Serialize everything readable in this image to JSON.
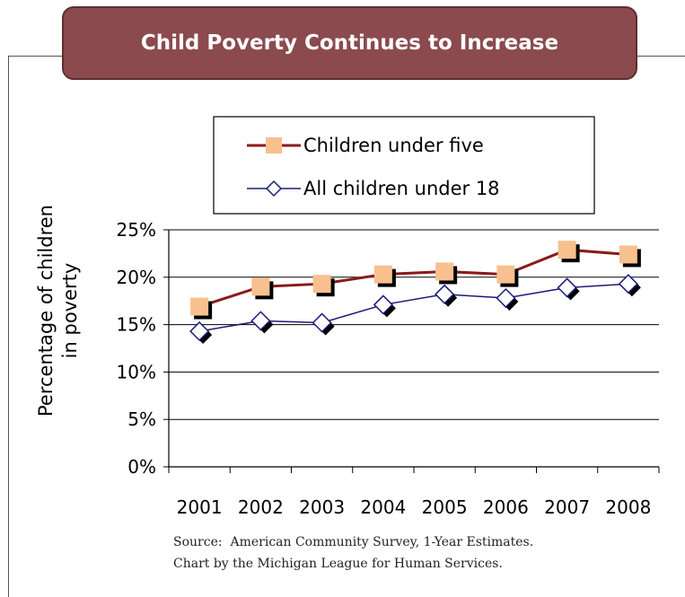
{
  "title": "Child Poverty Continues to Increase",
  "source_line1": "Source:  American Community Survey, 1-Year Estimates.",
  "source_line2": "Chart by the Michigan League for Human Services.",
  "chart_data": {
    "type": "line",
    "title": "",
    "xlabel": "",
    "ylabel": "Percentage of children in poverty",
    "ylabel_lines": [
      "Percentage of children",
      "in poverty"
    ],
    "categories": [
      "2001",
      "2002",
      "2003",
      "2004",
      "2005",
      "2006",
      "2007",
      "2008"
    ],
    "ylim": [
      0,
      25
    ],
    "yticks": [
      0,
      5,
      10,
      15,
      20,
      25
    ],
    "ytick_labels": [
      "0%",
      "5%",
      "10%",
      "15%",
      "20%",
      "25%"
    ],
    "grid": true,
    "legend_position": "top",
    "series": [
      {
        "name": "Children under five",
        "values": [
          16.9,
          19.0,
          19.3,
          20.3,
          20.6,
          20.3,
          22.9,
          22.4
        ],
        "line_color": "#8b1a1a",
        "marker": "square",
        "marker_color": "#f9c08f"
      },
      {
        "name": "All children under 18",
        "values": [
          14.3,
          15.4,
          15.2,
          17.1,
          18.2,
          17.8,
          18.9,
          19.3
        ],
        "line_color": "#1a1a7a",
        "marker": "diamond",
        "marker_color": "#ffffff"
      }
    ]
  }
}
